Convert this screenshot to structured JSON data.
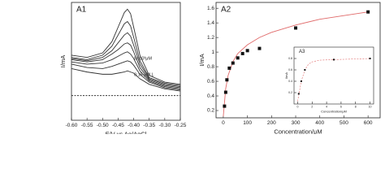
{
  "chart_data": [
    {
      "type": "line",
      "title": "A1",
      "x_label": "E/V vs Ag/AgCl",
      "y_label": "I/mA",
      "x": [
        -0.6,
        -0.55,
        -0.5,
        -0.47,
        -0.45,
        -0.43,
        -0.42,
        -0.41,
        -0.4,
        -0.38,
        -0.35,
        -0.3,
        -0.25
      ],
      "xlim": [
        -0.6,
        -0.25
      ],
      "xticks": [
        {
          "value": -0.6,
          "label": "-0.60"
        },
        {
          "value": -0.55,
          "label": "-0.55"
        },
        {
          "value": -0.5,
          "label": "-0.50"
        },
        {
          "value": -0.45,
          "label": "-0.45"
        },
        {
          "value": -0.4,
          "label": "-0.40"
        },
        {
          "value": -0.35,
          "label": "-0.35"
        },
        {
          "value": -0.3,
          "label": "-0.30"
        },
        {
          "value": -0.25,
          "label": "-0.25"
        }
      ],
      "ylim": [
        0,
        10.5
      ],
      "annotations": [
        "8×10³μM",
        "0.15 μM L"
      ],
      "series": [
        {
          "color": "#333333",
          "values": [
            5.8,
            5.6,
            6.0,
            7.0,
            8.3,
            9.6,
            9.9,
            9.5,
            8.3,
            5.8,
            4.0,
            3.4,
            3.2
          ]
        },
        {
          "color": "#333333",
          "values": [
            5.6,
            5.4,
            5.8,
            6.6,
            7.6,
            8.6,
            8.8,
            8.4,
            7.4,
            5.3,
            3.8,
            3.3,
            3.1
          ]
        },
        {
          "color": "#333333",
          "values": [
            5.5,
            5.3,
            5.6,
            6.2,
            6.9,
            7.6,
            7.8,
            7.5,
            6.7,
            5.0,
            3.7,
            3.2,
            3.0
          ]
        },
        {
          "color": "#333333",
          "values": [
            5.4,
            5.2,
            5.4,
            5.9,
            6.3,
            6.8,
            6.9,
            6.7,
            6.1,
            4.7,
            3.6,
            3.1,
            2.9
          ]
        },
        {
          "color": "#333333",
          "values": [
            5.2,
            5.0,
            5.1,
            5.4,
            5.7,
            6.0,
            6.1,
            5.9,
            5.5,
            4.4,
            3.5,
            3.0,
            2.8
          ]
        },
        {
          "color": "#333333",
          "values": [
            5.0,
            4.7,
            4.6,
            4.8,
            5.0,
            5.2,
            5.3,
            5.2,
            4.9,
            4.1,
            3.4,
            2.9,
            2.7
          ]
        },
        {
          "color": "#333333",
          "values": [
            4.6,
            4.3,
            4.1,
            4.1,
            4.2,
            4.3,
            4.4,
            4.3,
            4.2,
            3.7,
            3.2,
            2.8,
            2.6
          ]
        },
        {
          "color": "#333333",
          "dash": true,
          "values": [
            2.2,
            2.2,
            2.2,
            2.2,
            2.2,
            2.2,
            2.2,
            2.2,
            2.2,
            2.2,
            2.2,
            2.2,
            2.2
          ]
        }
      ]
    },
    {
      "type": "scatter",
      "title": "A2",
      "x_label": "Concentration/μM",
      "y_label": "I/mA",
      "xlim": [
        -30,
        650
      ],
      "xticks": [
        0,
        100,
        200,
        300,
        400,
        500,
        600
      ],
      "ylim": [
        0.1,
        1.68
      ],
      "yticks": [
        0.2,
        0.4,
        0.6,
        0.8,
        1.0,
        1.2,
        1.4,
        1.6
      ],
      "series": [
        {
          "color": "#e06a6a",
          "style": "line",
          "x": [
            0,
            10,
            20,
            40,
            60,
            100,
            150,
            200,
            300,
            400,
            500,
            600
          ],
          "values": [
            0.12,
            0.5,
            0.68,
            0.87,
            0.98,
            1.1,
            1.2,
            1.27,
            1.37,
            1.45,
            1.5,
            1.55
          ]
        },
        {
          "color": "#111111",
          "x": [
            5,
            10,
            15,
            25,
            40,
            60,
            80,
            100,
            150,
            300,
            600
          ],
          "values": [
            0.26,
            0.45,
            0.62,
            0.78,
            0.85,
            0.92,
            0.98,
            1.02,
            1.05,
            1.33,
            1.55
          ]
        }
      ]
    },
    {
      "type": "scatter",
      "title": "A3",
      "x_label": "Concentration/μM",
      "y_label": "I/mA",
      "xlim": [
        -0.5,
        10.5
      ],
      "xticks": [
        0,
        2,
        4,
        6,
        8,
        10
      ],
      "ylim": [
        0,
        1
      ],
      "yticks": [
        0.2,
        0.4,
        0.6,
        0.8
      ],
      "series": [
        {
          "color": "#e06a6a",
          "style": "line",
          "dash": true,
          "x": [
            0,
            0.5,
            1,
            1.5,
            2,
            3,
            5,
            10
          ],
          "values": [
            0.05,
            0.4,
            0.6,
            0.7,
            0.74,
            0.77,
            0.78,
            0.8
          ]
        },
        {
          "color": "#111111",
          "x": [
            0.15,
            0.5,
            1,
            5,
            10
          ],
          "values": [
            0.18,
            0.4,
            0.6,
            0.78,
            0.8
          ]
        }
      ]
    }
  ]
}
